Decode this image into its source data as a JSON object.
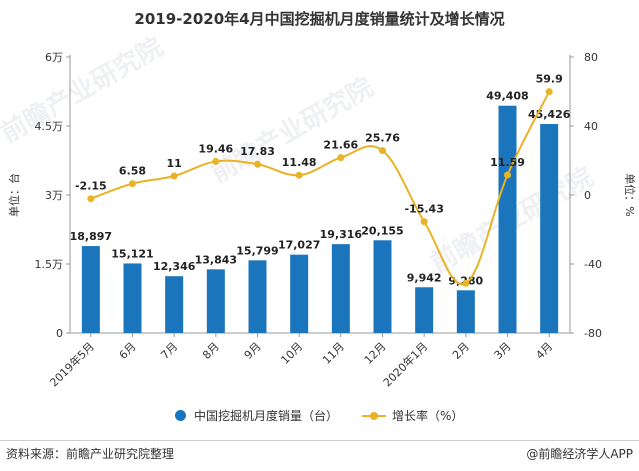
{
  "title": "2019-2020年4月中国挖掘机月度销量统计及增长情况",
  "watermarks": [
    "前瞻产业研究院",
    "前瞻产业研究院",
    "前瞻产业研究院"
  ],
  "chart_data": {
    "type": "bar",
    "title": "2019-2020年4月中国挖掘机月度销量统计及增长情况",
    "categories": [
      "2019年5月",
      "6月",
      "7月",
      "8月",
      "9月",
      "10月",
      "11月",
      "12月",
      "2020年1月",
      "2月",
      "3月",
      "4月"
    ],
    "series": [
      {
        "name": "中国挖掘机月度销量（台）",
        "type": "bar",
        "axis": "left",
        "color": "#1b75bc",
        "values": [
          18897,
          15121,
          12346,
          13843,
          15799,
          17027,
          19316,
          20155,
          9942,
          9280,
          49408,
          45426
        ],
        "labels": [
          "18,897",
          "15,121",
          "12,346",
          "13,843",
          "15,799",
          "17,027",
          "19,316",
          "20,155",
          "9,942",
          "9,280",
          "49,408",
          "45,426"
        ]
      },
      {
        "name": "增长率（%）",
        "type": "line",
        "axis": "right",
        "color": "#e8b325",
        "values": [
          -2.15,
          6.58,
          11,
          19.46,
          17.83,
          11.48,
          21.66,
          25.76,
          -15.43,
          -51.2,
          11.59,
          59.9
        ],
        "labels": [
          "-2.15",
          "6.58",
          "11",
          "19.46",
          "17.83",
          "11.48",
          "21.66",
          "25.76",
          "-15.43",
          "",
          "11.59",
          "59.9"
        ]
      }
    ],
    "ylabel_left": "单位：台",
    "ylabel_right": "单位：%",
    "ylim_left": [
      0,
      60000
    ],
    "ylim_right": [
      -80,
      80
    ],
    "yticks_left": [
      "0",
      "1.5万",
      "3万",
      "4.5万",
      "6万"
    ],
    "yticks_right": [
      "-80",
      "-40",
      "0",
      "40",
      "80"
    ],
    "grid": false,
    "legend": "bottom"
  },
  "footer": {
    "source": "资料来源：前瞻产业研究院整理",
    "brand": "@前瞻经济学人APP"
  }
}
